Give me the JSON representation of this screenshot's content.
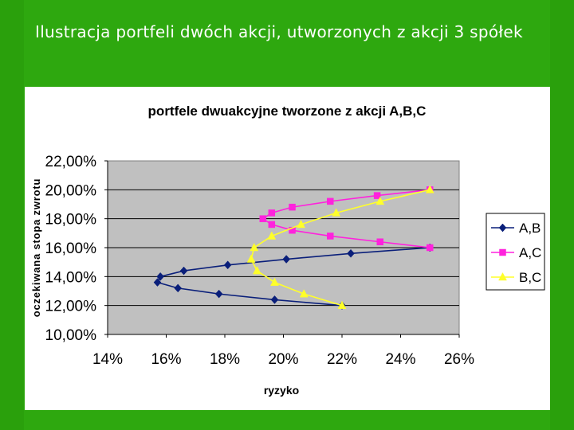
{
  "slide": {
    "title": "Ilustracja portfeli dwóch akcji, utworzonych z akcji 3 spółek"
  },
  "colors": {
    "slide_background": "#2ea80f",
    "plot_background": "#c0c0c0",
    "series_AB": "#0a1f7a",
    "series_AC": "#ff22dd",
    "series_BC": "#ffff2a"
  },
  "chart_data": {
    "type": "line",
    "title": "portfele dwuakcyjne tworzone z akcji A,B,C",
    "xlabel": "ryzyko",
    "ylabel": "oczekiwana stopa zwrotu",
    "xlim": [
      0.14,
      0.26
    ],
    "ylim": [
      0.1,
      0.22
    ],
    "x_ticks": [
      "14%",
      "16%",
      "18%",
      "20%",
      "22%",
      "24%",
      "26%"
    ],
    "y_ticks": [
      "10,00%",
      "12,00%",
      "14,00%",
      "16,00%",
      "18,00%",
      "20,00%",
      "22,00%"
    ],
    "grid": "horizontal",
    "legend_position": "right",
    "series": [
      {
        "name": "A,B",
        "marker": "diamond",
        "color": "#0a1f7a",
        "points": [
          [
            0.25,
            0.16
          ],
          [
            0.223,
            0.156
          ],
          [
            0.201,
            0.152
          ],
          [
            0.181,
            0.148
          ],
          [
            0.166,
            0.144
          ],
          [
            0.158,
            0.14
          ],
          [
            0.157,
            0.136
          ],
          [
            0.164,
            0.132
          ],
          [
            0.178,
            0.128
          ],
          [
            0.197,
            0.124
          ],
          [
            0.22,
            0.12
          ]
        ]
      },
      {
        "name": "A,C",
        "marker": "square",
        "color": "#ff22dd",
        "points": [
          [
            0.25,
            0.16
          ],
          [
            0.233,
            0.164
          ],
          [
            0.216,
            0.168
          ],
          [
            0.203,
            0.172
          ],
          [
            0.196,
            0.176
          ],
          [
            0.193,
            0.18
          ],
          [
            0.196,
            0.184
          ],
          [
            0.203,
            0.188
          ],
          [
            0.216,
            0.192
          ],
          [
            0.232,
            0.196
          ],
          [
            0.25,
            0.2
          ]
        ]
      },
      {
        "name": "B,C",
        "marker": "triangle",
        "color": "#ffff2a",
        "points": [
          [
            0.22,
            0.12
          ],
          [
            0.207,
            0.128
          ],
          [
            0.197,
            0.136
          ],
          [
            0.191,
            0.144
          ],
          [
            0.189,
            0.152
          ],
          [
            0.19,
            0.16
          ],
          [
            0.196,
            0.168
          ],
          [
            0.206,
            0.176
          ],
          [
            0.218,
            0.184
          ],
          [
            0.233,
            0.192
          ],
          [
            0.25,
            0.2
          ]
        ]
      }
    ]
  }
}
